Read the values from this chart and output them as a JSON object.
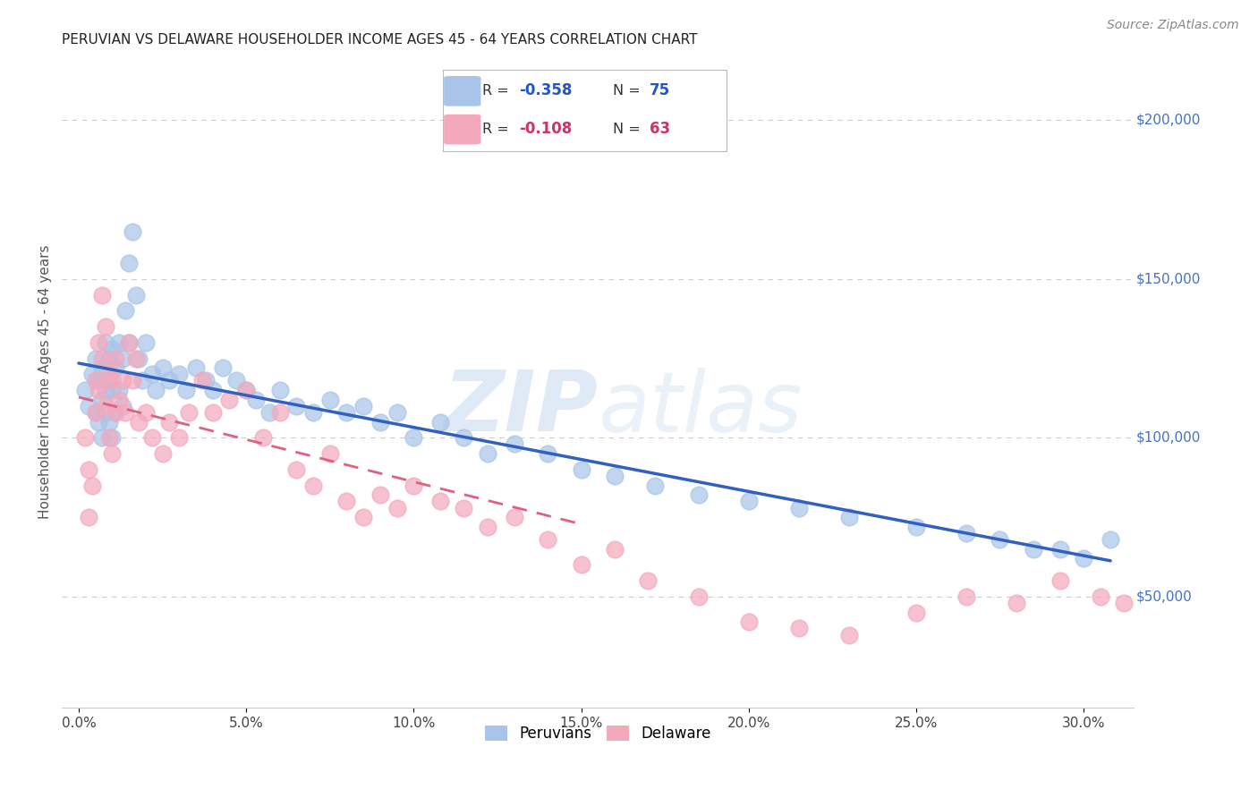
{
  "title": "PERUVIAN VS DELAWARE HOUSEHOLDER INCOME AGES 45 - 64 YEARS CORRELATION CHART",
  "source": "Source: ZipAtlas.com",
  "ylabel": "Householder Income Ages 45 - 64 years",
  "xlabel_ticks": [
    "0.0%",
    "5.0%",
    "10.0%",
    "15.0%",
    "20.0%",
    "25.0%",
    "30.0%"
  ],
  "xlabel_vals": [
    0.0,
    0.05,
    0.1,
    0.15,
    0.2,
    0.25,
    0.3
  ],
  "ylabel_ticks": [
    "$50,000",
    "$100,000",
    "$150,000",
    "$200,000"
  ],
  "ylabel_vals": [
    50000,
    100000,
    150000,
    200000
  ],
  "xlim": [
    -0.005,
    0.315
  ],
  "ylim": [
    15000,
    220000
  ],
  "blue_R": "-0.358",
  "blue_N": "75",
  "pink_R": "-0.108",
  "pink_N": "63",
  "blue_color": "#a8c4e8",
  "pink_color": "#f4a8bc",
  "blue_line_color": "#3060c0",
  "pink_line_color": "#e06080",
  "watermark_zip": "ZIP",
  "watermark_atlas": "atlas",
  "legend_label_blue": "Peruvians",
  "legend_label_pink": "Delaware",
  "blue_points_x": [
    0.002,
    0.003,
    0.004,
    0.005,
    0.005,
    0.006,
    0.006,
    0.007,
    0.007,
    0.007,
    0.008,
    0.008,
    0.008,
    0.009,
    0.009,
    0.009,
    0.01,
    0.01,
    0.01,
    0.011,
    0.011,
    0.012,
    0.012,
    0.013,
    0.013,
    0.014,
    0.015,
    0.015,
    0.016,
    0.017,
    0.018,
    0.019,
    0.02,
    0.022,
    0.023,
    0.025,
    0.027,
    0.03,
    0.032,
    0.035,
    0.038,
    0.04,
    0.043,
    0.047,
    0.05,
    0.053,
    0.057,
    0.06,
    0.065,
    0.07,
    0.075,
    0.08,
    0.085,
    0.09,
    0.095,
    0.1,
    0.108,
    0.115,
    0.122,
    0.13,
    0.14,
    0.15,
    0.16,
    0.172,
    0.185,
    0.2,
    0.215,
    0.23,
    0.25,
    0.265,
    0.275,
    0.285,
    0.293,
    0.3,
    0.308
  ],
  "blue_points_y": [
    115000,
    110000,
    120000,
    125000,
    108000,
    118000,
    105000,
    122000,
    112000,
    100000,
    130000,
    115000,
    108000,
    125000,
    118000,
    105000,
    128000,
    115000,
    100000,
    122000,
    108000,
    130000,
    115000,
    125000,
    110000,
    140000,
    155000,
    130000,
    165000,
    145000,
    125000,
    118000,
    130000,
    120000,
    115000,
    122000,
    118000,
    120000,
    115000,
    122000,
    118000,
    115000,
    122000,
    118000,
    115000,
    112000,
    108000,
    115000,
    110000,
    108000,
    112000,
    108000,
    110000,
    105000,
    108000,
    100000,
    105000,
    100000,
    95000,
    98000,
    95000,
    90000,
    88000,
    85000,
    82000,
    80000,
    78000,
    75000,
    72000,
    70000,
    68000,
    65000,
    65000,
    62000,
    68000
  ],
  "pink_points_x": [
    0.002,
    0.003,
    0.003,
    0.004,
    0.005,
    0.005,
    0.006,
    0.006,
    0.007,
    0.007,
    0.008,
    0.008,
    0.009,
    0.009,
    0.01,
    0.01,
    0.011,
    0.011,
    0.012,
    0.013,
    0.014,
    0.015,
    0.016,
    0.017,
    0.018,
    0.02,
    0.022,
    0.025,
    0.027,
    0.03,
    0.033,
    0.037,
    0.04,
    0.045,
    0.05,
    0.055,
    0.06,
    0.065,
    0.07,
    0.075,
    0.08,
    0.085,
    0.09,
    0.095,
    0.1,
    0.108,
    0.115,
    0.122,
    0.13,
    0.14,
    0.15,
    0.16,
    0.17,
    0.185,
    0.2,
    0.215,
    0.23,
    0.25,
    0.265,
    0.28,
    0.293,
    0.305,
    0.312
  ],
  "pink_points_y": [
    100000,
    90000,
    75000,
    85000,
    118000,
    108000,
    130000,
    115000,
    145000,
    125000,
    135000,
    110000,
    120000,
    100000,
    118000,
    95000,
    125000,
    108000,
    112000,
    118000,
    108000,
    130000,
    118000,
    125000,
    105000,
    108000,
    100000,
    95000,
    105000,
    100000,
    108000,
    118000,
    108000,
    112000,
    115000,
    100000,
    108000,
    90000,
    85000,
    95000,
    80000,
    75000,
    82000,
    78000,
    85000,
    80000,
    78000,
    72000,
    75000,
    68000,
    60000,
    65000,
    55000,
    50000,
    42000,
    40000,
    38000,
    45000,
    50000,
    48000,
    55000,
    50000,
    48000
  ]
}
